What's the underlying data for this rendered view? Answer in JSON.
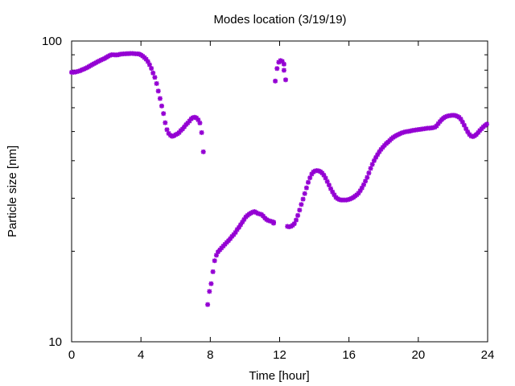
{
  "chart_data": {
    "type": "scatter",
    "title": "Modes location (3/19/19)",
    "xlabel": "Time [hour]",
    "ylabel": "Particle size [nm]",
    "xlim": [
      0,
      24
    ],
    "ylim": [
      10,
      100
    ],
    "yscale": "log",
    "xticks": [
      "0",
      "4",
      "8",
      "12",
      "16",
      "20",
      "24"
    ],
    "yticks": [
      "10",
      "100"
    ],
    "grid": false,
    "legend": "none",
    "marker_color": "#9400d3",
    "series": [
      {
        "x": [
          0.0,
          0.1,
          0.2,
          0.3,
          0.4,
          0.5,
          0.6,
          0.7,
          0.8,
          0.9,
          1.0,
          1.1,
          1.2,
          1.3,
          1.4,
          1.5,
          1.6,
          1.7,
          1.8,
          1.9,
          2.0,
          2.1,
          2.2,
          2.3,
          2.4,
          2.5,
          2.6,
          2.7,
          2.8,
          2.9,
          3.0,
          3.1,
          3.2,
          3.3,
          3.4,
          3.5,
          3.6,
          3.7,
          3.8,
          3.9,
          4.0,
          4.1,
          4.2,
          4.3,
          4.4,
          4.5,
          4.6,
          4.7,
          4.8,
          4.9,
          5.0,
          5.1,
          5.2,
          5.3,
          5.4,
          5.5,
          5.6,
          5.7,
          5.8,
          5.9,
          6.0,
          6.1,
          6.2,
          6.3,
          6.4,
          6.5,
          6.6,
          6.7,
          6.8,
          6.9,
          7.0,
          7.1,
          7.2,
          7.3,
          7.4,
          7.5,
          7.6,
          7.85,
          7.95,
          8.05,
          8.15,
          8.25,
          8.35,
          8.45,
          8.55,
          8.65,
          8.75,
          8.85,
          8.95,
          9.05,
          9.15,
          9.25,
          9.35,
          9.45,
          9.55,
          9.65,
          9.75,
          9.85,
          9.95,
          10.05,
          10.15,
          10.25,
          10.35,
          10.45,
          10.55,
          10.65,
          10.75,
          10.85,
          10.95,
          11.05,
          11.15,
          11.25,
          11.35,
          11.45,
          11.55,
          11.65,
          11.65,
          11.75,
          11.85,
          11.95,
          12.05,
          12.15,
          12.25,
          12.25,
          12.35,
          12.45,
          12.55,
          12.65,
          12.75,
          12.85,
          12.95,
          13.05,
          13.15,
          13.25,
          13.35,
          13.45,
          13.55,
          13.65,
          13.75,
          13.85,
          13.95,
          14.05,
          14.15,
          14.25,
          14.35,
          14.45,
          14.55,
          14.65,
          14.75,
          14.85,
          14.95,
          15.05,
          15.15,
          15.25,
          15.35,
          15.45,
          15.55,
          15.65,
          15.75,
          15.85,
          15.95,
          16.05,
          16.15,
          16.25,
          16.35,
          16.45,
          16.55,
          16.65,
          16.75,
          16.85,
          16.95,
          17.05,
          17.15,
          17.25,
          17.35,
          17.45,
          17.55,
          17.65,
          17.75,
          17.85,
          17.95,
          18.05,
          18.15,
          18.25,
          18.35,
          18.45,
          18.55,
          18.65,
          18.75,
          18.85,
          18.95,
          19.05,
          19.15,
          19.25,
          19.35,
          19.45,
          19.55,
          19.65,
          19.75,
          19.85,
          19.95,
          20.05,
          20.15,
          20.25,
          20.35,
          20.45,
          20.55,
          20.65,
          20.75,
          20.85,
          20.95,
          21.05,
          21.15,
          21.25,
          21.35,
          21.45,
          21.55,
          21.65,
          21.75,
          21.85,
          21.95,
          22.05,
          22.15,
          22.25,
          22.35,
          22.45,
          22.55,
          22.65,
          22.75,
          22.85,
          22.95,
          23.05,
          23.15,
          23.25,
          23.35,
          23.45,
          23.55,
          23.65,
          23.75,
          23.85,
          23.95
        ],
        "y": [
          78.7,
          78.7,
          78.8,
          79.1,
          79.4,
          79.7,
          80.2,
          80.6,
          81.1,
          81.6,
          82.2,
          82.9,
          83.5,
          84.1,
          84.7,
          85.3,
          85.9,
          86.5,
          87.0,
          87.5,
          88.2,
          88.9,
          89.5,
          90.0,
          90.0,
          89.9,
          89.9,
          90.0,
          90.4,
          90.5,
          90.6,
          90.7,
          90.8,
          90.8,
          90.9,
          90.9,
          90.8,
          90.7,
          90.6,
          90.5,
          89.9,
          89.1,
          88.1,
          87.0,
          85.4,
          83.4,
          81.1,
          78.3,
          75.7,
          72.2,
          68.2,
          64.4,
          60.8,
          57.4,
          53.5,
          50.7,
          49.3,
          48.6,
          48.2,
          48.4,
          48.8,
          49.1,
          49.6,
          50.4,
          51.0,
          51.8,
          52.7,
          53.4,
          54.2,
          55.1,
          55.6,
          55.8,
          55.5,
          54.7,
          53.4,
          49.6,
          42.8,
          13.3,
          14.7,
          15.6,
          17.1,
          18.6,
          19.4,
          19.9,
          20.2,
          20.5,
          20.8,
          21.1,
          21.4,
          21.7,
          22.0,
          22.4,
          22.7,
          23.1,
          23.6,
          24.0,
          24.5,
          25.0,
          25.5,
          26.0,
          26.3,
          26.6,
          26.8,
          27.0,
          27.1,
          26.9,
          26.7,
          26.6,
          26.5,
          26.2,
          25.8,
          25.5,
          25.3,
          25.2,
          25.1,
          25.0,
          24.8,
          73.6,
          81.0,
          85.0,
          86.1,
          85.6,
          83.8,
          79.9,
          74.3,
          24.2,
          24.1,
          24.2,
          24.4,
          24.7,
          25.4,
          26.3,
          27.4,
          28.6,
          29.8,
          31.1,
          32.5,
          33.9,
          35.1,
          36.1,
          36.7,
          37.0,
          37.1,
          37.0,
          36.8,
          36.4,
          35.8,
          35.0,
          34.1,
          33.2,
          32.3,
          31.5,
          30.8,
          30.2,
          29.9,
          29.7,
          29.6,
          29.6,
          29.6,
          29.6,
          29.7,
          29.8,
          30.0,
          30.2,
          30.5,
          30.8,
          31.2,
          31.8,
          32.5,
          33.3,
          34.2,
          35.2,
          36.4,
          37.7,
          38.9,
          40.0,
          41.0,
          41.9,
          42.8,
          43.6,
          44.3,
          45.0,
          45.6,
          46.1,
          46.7,
          47.3,
          47.8,
          48.2,
          48.6,
          48.9,
          49.2,
          49.5,
          49.7,
          49.9,
          50.0,
          50.1,
          50.2,
          50.4,
          50.5,
          50.6,
          50.7,
          50.8,
          50.9,
          51.0,
          51.1,
          51.2,
          51.3,
          51.3,
          51.4,
          51.5,
          51.7,
          52.2,
          53.1,
          54.0,
          54.8,
          55.4,
          55.9,
          56.2,
          56.4,
          56.5,
          56.6,
          56.6,
          56.5,
          56.2,
          55.8,
          55.0,
          53.8,
          52.5,
          51.1,
          49.9,
          48.9,
          48.3,
          48.1,
          48.4,
          48.9,
          49.6,
          50.4,
          51.1,
          51.8,
          52.4,
          52.9
        ]
      }
    ]
  }
}
